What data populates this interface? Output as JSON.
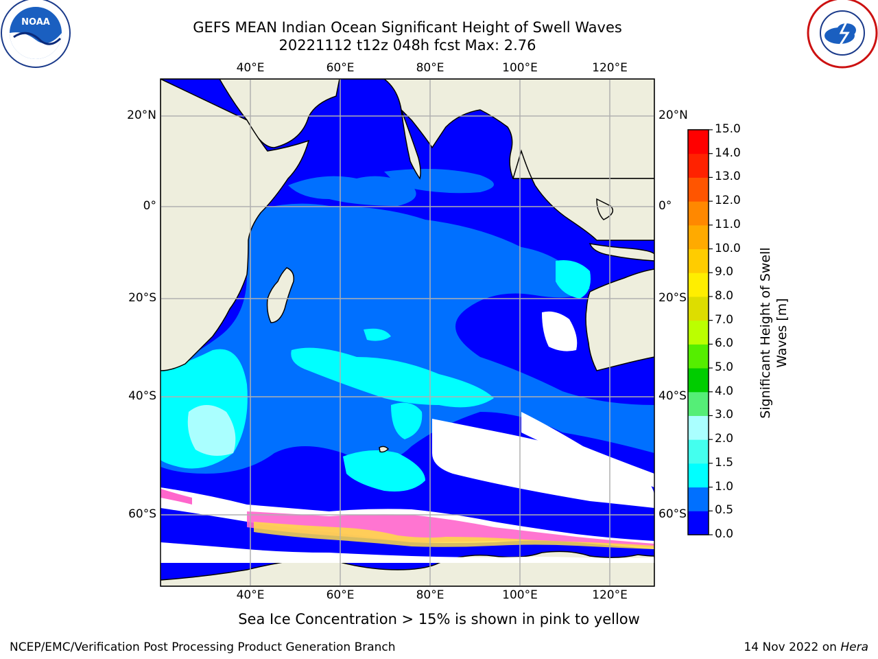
{
  "title": {
    "line1": "GEFS MEAN Indian Ocean Significant Height of Swell Waves",
    "line2": "20221112 t12z 048h fcst   Max: 2.76"
  },
  "logos": {
    "left": "noaa-logo",
    "right": "nws-logo"
  },
  "axes": {
    "lon_ticks": [
      "40°E",
      "60°E",
      "80°E",
      "100°E",
      "120°E"
    ],
    "lat_ticks": [
      "20°N",
      "0°",
      "20°S",
      "40°S",
      "60°S"
    ]
  },
  "colorbar": {
    "label_line1": "Significant Height of Swell",
    "label_line2": "Waves [m]",
    "ticks": [
      "15.0",
      "14.0",
      "13.0",
      "12.0",
      "11.0",
      "10.0",
      "9.0",
      "8.0",
      "7.0",
      "6.0",
      "5.0",
      "4.0",
      "3.0",
      "2.0",
      "1.5",
      "1.0",
      "0.5",
      "0.0"
    ],
    "colors_bottom_to_top": [
      "#0000ff",
      "#0070ff",
      "#00ffff",
      "#44ffee",
      "#aaffff",
      "#55ee77",
      "#00cc00",
      "#55ee00",
      "#bbff00",
      "#dddd00",
      "#ffee00",
      "#ffcc00",
      "#ffaa00",
      "#ff8800",
      "#ff5500",
      "#ff2200",
      "#ff0000"
    ]
  },
  "colors": {
    "land": "#eeeedd",
    "ocean_low": "#0000ff",
    "ocean_mid": "#0070ff",
    "ocean_high": "#00ffff",
    "ice_pink": "#ff66cc",
    "ice_yellow": "#ffdd44"
  },
  "caption": "Sea Ice Concentration > 15% is shown in pink to yellow",
  "footer": {
    "left": "NCEP/EMC/Verification Post Processing Product Generation Branch",
    "date": "14 Nov 2022 on ",
    "machine": "Hera"
  }
}
